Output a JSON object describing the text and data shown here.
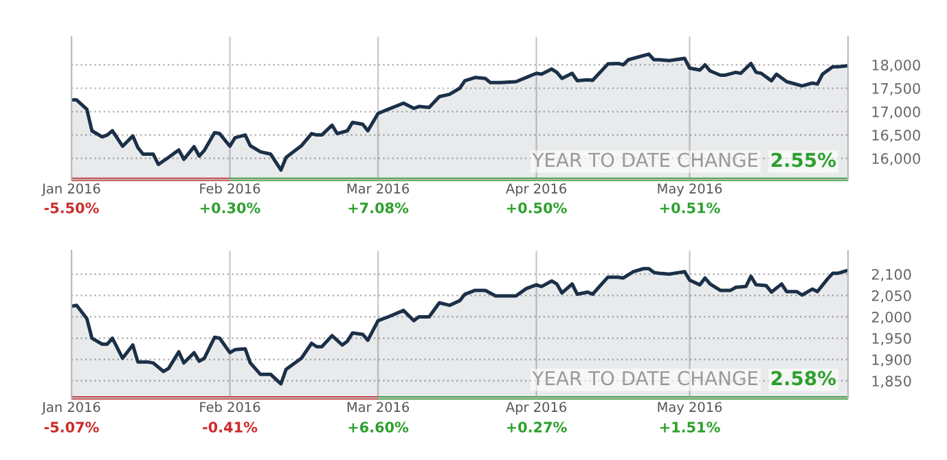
{
  "chart_data": [
    {
      "type": "area",
      "x": [
        "2016-01-01",
        "2016-01-02",
        "2016-01-04",
        "2016-01-05",
        "2016-01-07",
        "2016-01-08",
        "2016-01-09",
        "2016-01-11",
        "2016-01-13",
        "2016-01-14",
        "2016-01-15",
        "2016-01-17",
        "2016-01-18",
        "2016-01-20",
        "2016-01-22",
        "2016-01-23",
        "2016-01-25",
        "2016-01-26",
        "2016-01-27",
        "2016-01-29",
        "2016-01-30",
        "2016-02-01",
        "2016-02-02",
        "2016-02-04",
        "2016-02-05",
        "2016-02-07",
        "2016-02-09",
        "2016-02-11",
        "2016-02-12",
        "2016-02-15",
        "2016-02-17",
        "2016-02-18",
        "2016-02-19",
        "2016-02-21",
        "2016-02-22",
        "2016-02-24",
        "2016-02-25",
        "2016-02-27",
        "2016-02-28",
        "2016-03-01",
        "2016-03-03",
        "2016-03-06",
        "2016-03-08",
        "2016-03-09",
        "2016-03-11",
        "2016-03-13",
        "2016-03-15",
        "2016-03-17",
        "2016-03-18",
        "2016-03-20",
        "2016-03-22",
        "2016-03-23",
        "2016-03-25",
        "2016-03-28",
        "2016-03-30",
        "2016-04-01",
        "2016-04-02",
        "2016-04-04",
        "2016-04-05",
        "2016-04-06",
        "2016-04-08",
        "2016-04-09",
        "2016-04-11",
        "2016-04-12",
        "2016-04-15",
        "2016-04-17",
        "2016-04-18",
        "2016-04-19",
        "2016-04-22",
        "2016-04-23",
        "2016-04-24",
        "2016-04-25",
        "2016-04-27",
        "2016-04-30",
        "2016-05-01",
        "2016-05-03",
        "2016-05-04",
        "2016-05-05",
        "2016-05-07",
        "2016-05-08",
        "2016-05-10",
        "2016-05-11",
        "2016-05-13",
        "2016-05-14",
        "2016-05-15",
        "2016-05-17",
        "2016-05-18",
        "2016-05-20",
        "2016-05-21",
        "2016-05-23",
        "2016-05-25",
        "2016-05-26",
        "2016-05-27",
        "2016-05-29",
        "2016-05-30",
        "2016-06-01"
      ],
      "series": [
        {
          "color": "#1b3048",
          "values": [
            17250,
            17250,
            17050,
            16590,
            16460,
            16500,
            16590,
            16260,
            16480,
            16230,
            16090,
            16090,
            15870,
            16020,
            16180,
            15980,
            16250,
            16050,
            16170,
            16550,
            16530,
            16260,
            16440,
            16500,
            16270,
            16140,
            16090,
            15750,
            16020,
            16270,
            16530,
            16500,
            16500,
            16710,
            16530,
            16590,
            16770,
            16730,
            16590,
            16960,
            17050,
            17180,
            17070,
            17110,
            17090,
            17320,
            17370,
            17500,
            17660,
            17730,
            17710,
            17620,
            17620,
            17640,
            17730,
            17820,
            17800,
            17910,
            17840,
            17710,
            17820,
            17660,
            17680,
            17670,
            18020,
            18030,
            18000,
            18110,
            18200,
            18230,
            18110,
            18110,
            18090,
            18140,
            17930,
            17890,
            18000,
            17870,
            17780,
            17780,
            17840,
            17820,
            18030,
            17840,
            17820,
            17660,
            17800,
            17640,
            17610,
            17550,
            17610,
            17590,
            17800,
            17960,
            17960,
            17980
          ]
        }
      ],
      "xlim": [
        "2016-01-01",
        "2016-06-01"
      ],
      "xticks": [
        {
          "value": "2016-01-01",
          "label": "Jan 2016"
        },
        {
          "value": "2016-02-01",
          "label": "Feb 2016"
        },
        {
          "value": "2016-03-01",
          "label": "Mar 2016"
        },
        {
          "value": "2016-04-01",
          "label": "Apr 2016"
        },
        {
          "value": "2016-05-01",
          "label": "May 2016"
        }
      ],
      "ylim": [
        15550,
        18600
      ],
      "yticks": [
        {
          "value": 16000,
          "label": "16,000"
        },
        {
          "value": 16500,
          "label": "16,500"
        },
        {
          "value": 17000,
          "label": "17,000"
        },
        {
          "value": 17500,
          "label": "17,500"
        },
        {
          "value": 18000,
          "label": "18,000"
        }
      ],
      "grid": true,
      "annotations": [
        "YEAR TO DATE CHANGE",
        "2.55%",
        "-5.50%",
        "+0.30%",
        "+7.08%",
        "+0.50%",
        "+0.51%"
      ]
    },
    {
      "type": "area",
      "x": [
        "2016-01-01",
        "2016-01-02",
        "2016-01-04",
        "2016-01-05",
        "2016-01-07",
        "2016-01-08",
        "2016-01-09",
        "2016-01-11",
        "2016-01-13",
        "2016-01-14",
        "2016-01-16",
        "2016-01-17",
        "2016-01-19",
        "2016-01-20",
        "2016-01-22",
        "2016-01-23",
        "2016-01-25",
        "2016-01-26",
        "2016-01-27",
        "2016-01-29",
        "2016-01-30",
        "2016-02-01",
        "2016-02-02",
        "2016-02-04",
        "2016-02-05",
        "2016-02-07",
        "2016-02-09",
        "2016-02-11",
        "2016-02-12",
        "2016-02-15",
        "2016-02-17",
        "2016-02-18",
        "2016-02-19",
        "2016-02-21",
        "2016-02-23",
        "2016-02-24",
        "2016-02-25",
        "2016-02-27",
        "2016-02-28",
        "2016-03-01",
        "2016-03-03",
        "2016-03-06",
        "2016-03-08",
        "2016-03-09",
        "2016-03-11",
        "2016-03-13",
        "2016-03-15",
        "2016-03-17",
        "2016-03-18",
        "2016-03-20",
        "2016-03-22",
        "2016-03-24",
        "2016-03-28",
        "2016-03-30",
        "2016-04-01",
        "2016-04-02",
        "2016-04-04",
        "2016-04-05",
        "2016-04-06",
        "2016-04-08",
        "2016-04-09",
        "2016-04-11",
        "2016-04-12",
        "2016-04-15",
        "2016-04-17",
        "2016-04-18",
        "2016-04-20",
        "2016-04-22",
        "2016-04-23",
        "2016-04-24",
        "2016-04-25",
        "2016-04-27",
        "2016-04-30",
        "2016-05-01",
        "2016-05-03",
        "2016-05-04",
        "2016-05-05",
        "2016-05-07",
        "2016-05-09",
        "2016-05-10",
        "2016-05-12",
        "2016-05-13",
        "2016-05-14",
        "2016-05-16",
        "2016-05-17",
        "2016-05-19",
        "2016-05-20",
        "2016-05-22",
        "2016-05-23",
        "2016-05-25",
        "2016-05-26",
        "2016-05-28",
        "2016-05-29",
        "2016-05-30",
        "2016-06-01"
      ],
      "series": [
        {
          "color": "#1b3048",
          "values": [
            2025,
            2027,
            1996,
            1950,
            1936,
            1936,
            1950,
            1903,
            1934,
            1894,
            1894,
            1892,
            1872,
            1879,
            1918,
            1892,
            1916,
            1896,
            1903,
            1952,
            1950,
            1916,
            1923,
            1925,
            1892,
            1865,
            1865,
            1843,
            1877,
            1903,
            1938,
            1930,
            1930,
            1956,
            1934,
            1943,
            1962,
            1959,
            1945,
            1991,
            2000,
            2015,
            1991,
            2000,
            2000,
            2033,
            2027,
            2038,
            2053,
            2062,
            2062,
            2049,
            2049,
            2066,
            2075,
            2071,
            2084,
            2077,
            2056,
            2077,
            2053,
            2058,
            2053,
            2093,
            2093,
            2091,
            2106,
            2113,
            2113,
            2104,
            2102,
            2100,
            2106,
            2086,
            2075,
            2091,
            2077,
            2062,
            2062,
            2069,
            2071,
            2095,
            2075,
            2073,
            2058,
            2077,
            2059,
            2059,
            2051,
            2065,
            2059,
            2089,
            2102,
            2102,
            2109
          ]
        }
      ],
      "xlim": [
        "2016-01-01",
        "2016-06-01"
      ],
      "xticks": [
        {
          "value": "2016-01-01",
          "label": "Jan 2016"
        },
        {
          "value": "2016-02-01",
          "label": "Feb 2016"
        },
        {
          "value": "2016-03-01",
          "label": "Mar 2016"
        },
        {
          "value": "2016-04-01",
          "label": "Apr 2016"
        },
        {
          "value": "2016-05-01",
          "label": "May 2016"
        }
      ],
      "ylim": [
        1810,
        2155
      ],
      "yticks": [
        {
          "value": 1850,
          "label": "1,850"
        },
        {
          "value": 1900,
          "label": "1,900"
        },
        {
          "value": 1950,
          "label": "1,950"
        },
        {
          "value": 2000,
          "label": "2,000"
        },
        {
          "value": 2050,
          "label": "2,050"
        },
        {
          "value": 2100,
          "label": "2,100"
        }
      ],
      "grid": true,
      "annotations": [
        "YEAR TO DATE CHANGE",
        "2.58%",
        "-5.07%",
        "-0.41%",
        "+6.60%",
        "+0.27%",
        "+1.51%"
      ]
    }
  ]
}
